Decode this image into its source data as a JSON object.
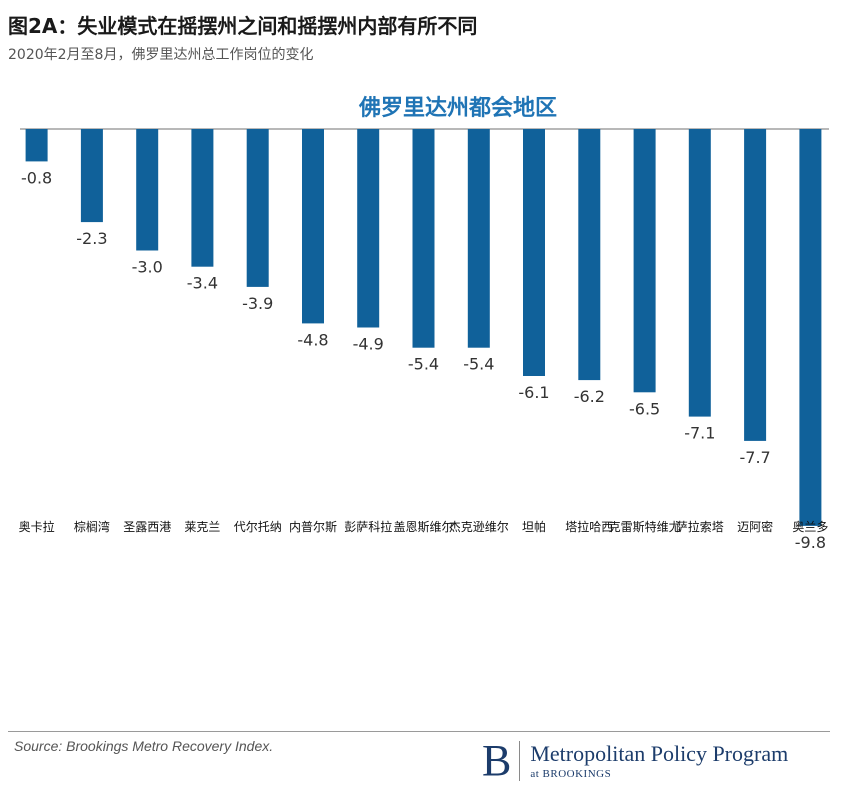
{
  "header": {
    "title": "图2A：失业模式在摇摆州之间和摇摆州内部有所不同",
    "subtitle": "2020年2月至8月，佛罗里达州总工作岗位的变化"
  },
  "chart_data": {
    "type": "bar",
    "title": "佛罗里达州都会地区",
    "categories": [
      "奥卡拉",
      "棕榈湾",
      "圣露西港",
      "莱克兰",
      "代尔托纳",
      "内普尔斯",
      "彭萨科拉",
      "盖恩斯维尔",
      "杰克逊维尔",
      "坦帕",
      "塔拉哈西",
      "克雷斯特维尤",
      "萨拉索塔",
      "迈阿密",
      "奥兰多"
    ],
    "values": [
      -0.8,
      -2.3,
      -3.0,
      -3.4,
      -3.9,
      -4.8,
      -4.9,
      -5.4,
      -5.4,
      -6.1,
      -6.2,
      -6.5,
      -7.1,
      -7.7,
      -9.8
    ],
    "value_labels": [
      "-0.8",
      "-2.3",
      "-3.0",
      "-3.4",
      "-3.9",
      "-4.8",
      "-4.9",
      "-5.4",
      "-5.4",
      "-6.1",
      "-6.2",
      "-6.5",
      "-7.1",
      "-7.7",
      "-9.8"
    ],
    "ylim": [
      -10.5,
      0
    ],
    "grid": false,
    "bar_color": "#10619a",
    "title_color": "#1f74b5"
  },
  "footer": {
    "source": "Source: Brookings Metro Recovery Index.",
    "logo_letter": "B",
    "logo_main": "Metropolitan Policy Program",
    "logo_sub": "at BROOKINGS"
  }
}
